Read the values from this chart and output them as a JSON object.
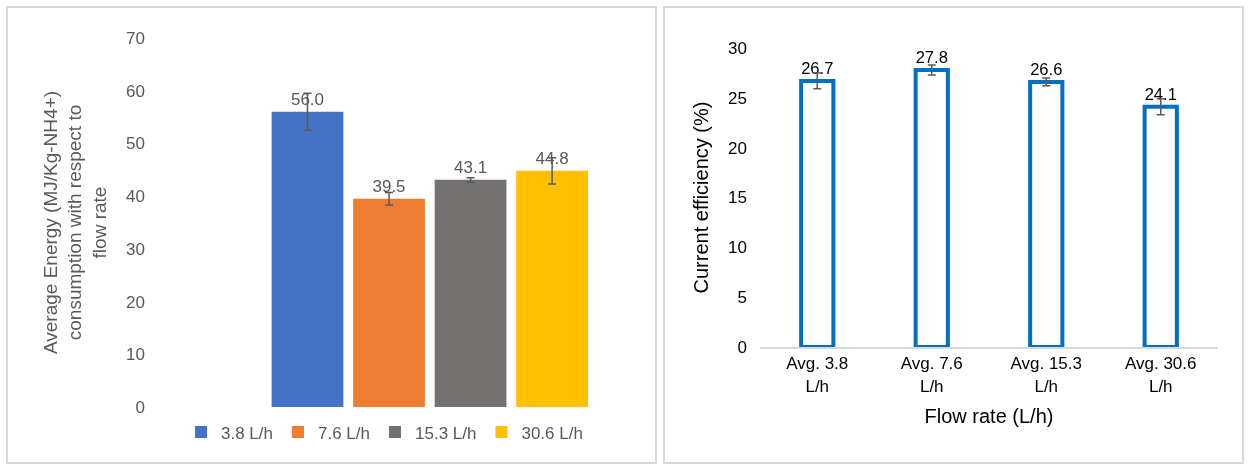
{
  "chart_data": [
    {
      "type": "bar",
      "ylabel": "Average Energy (MJ/Kg-NH4+) consumption with respect to flow rate",
      "categories": [
        null
      ],
      "ylim": [
        0,
        70
      ],
      "yticks": [
        0,
        10,
        20,
        30,
        40,
        50,
        60,
        70
      ],
      "grid": false,
      "legend": "bottom",
      "series": [
        {
          "name": "3.8 L/h",
          "color": "#4472c4",
          "values": [
            56.0
          ],
          "errors": [
            3.5
          ],
          "value_labels": [
            "56.0"
          ]
        },
        {
          "name": "7.6 L/h",
          "color": "#ed7d31",
          "values": [
            39.5
          ],
          "errors": [
            1.2
          ],
          "value_labels": [
            "39.5"
          ]
        },
        {
          "name": "15.3 L/h",
          "color": "#767171",
          "values": [
            43.1
          ],
          "errors": [
            0.4
          ],
          "value_labels": [
            "43.1"
          ]
        },
        {
          "name": "30.6 L/h",
          "color": "#ffc000",
          "values": [
            44.8
          ],
          "errors": [
            2.5
          ],
          "value_labels": [
            "44.8"
          ]
        }
      ]
    },
    {
      "type": "bar",
      "xlabel": "Flow rate (L/h)",
      "ylabel": "Current efficiency (%)",
      "categories": [
        "Avg. 3.8 L/h",
        "Avg. 7.6 L/h",
        "Avg. 15.3 L/h",
        "Avg. 30.6 L/h"
      ],
      "values": [
        26.7,
        27.8,
        26.6,
        24.1
      ],
      "errors": [
        0.8,
        0.5,
        0.4,
        0.8
      ],
      "color": "#0070c0",
      "data_labels": true,
      "ylim": [
        0,
        30
      ],
      "yticks": [
        0,
        5,
        10,
        15,
        20,
        25,
        30
      ],
      "grid": false,
      "legend": false
    }
  ]
}
